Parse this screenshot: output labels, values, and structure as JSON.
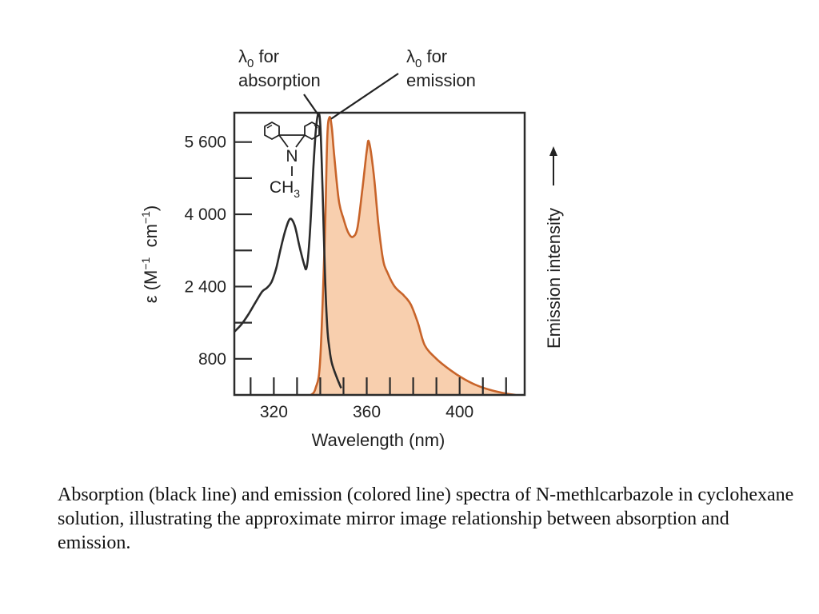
{
  "chart_data": {
    "type": "line",
    "xlabel": "Wavelength (nm)",
    "ylabel": "ε (M",
    "ylabel_sup1": "−1",
    "ylabel_mid": "  cm",
    "ylabel_sup2": "−1",
    "ylabel_end": ")",
    "ylabel_right": "Emission intensity",
    "xlim": [
      303,
      428
    ],
    "ylim": [
      0,
      6250
    ],
    "x_ticks": [
      320,
      360,
      400
    ],
    "x_minor_ticks": [
      310,
      320,
      330,
      340,
      350,
      360,
      370,
      380,
      390,
      400,
      410,
      420
    ],
    "y_ticks": [
      {
        "value": 5600,
        "label": "5 600"
      },
      {
        "value": 4000,
        "label": "4 000"
      },
      {
        "value": 2400,
        "label": "2 400"
      },
      {
        "value": 800,
        "label": "800"
      }
    ],
    "y_minor_ticks": [
      4800,
      3200,
      1600
    ],
    "series": [
      {
        "name": "Absorption (black line)",
        "color": "#2b2b2b",
        "points": [
          [
            303,
            1400
          ],
          [
            306,
            1560
          ],
          [
            309,
            1780
          ],
          [
            312,
            2040
          ],
          [
            315,
            2290
          ],
          [
            317,
            2370
          ],
          [
            319,
            2500
          ],
          [
            321,
            2800
          ],
          [
            323,
            3250
          ],
          [
            325,
            3650
          ],
          [
            327,
            3900
          ],
          [
            329,
            3750
          ],
          [
            331,
            3300
          ],
          [
            333,
            2900
          ],
          [
            334,
            2800
          ],
          [
            335,
            3200
          ],
          [
            336,
            4000
          ],
          [
            337,
            5000
          ],
          [
            338,
            5800
          ],
          [
            339,
            6200
          ],
          [
            340,
            6000
          ],
          [
            341,
            4500
          ],
          [
            342,
            2700
          ],
          [
            343,
            1500
          ],
          [
            344,
            1000
          ],
          [
            345,
            700
          ],
          [
            347,
            400
          ],
          [
            349,
            150
          ]
        ]
      },
      {
        "name": "Emission (colored line)",
        "color": "#c8642a",
        "fill": "#f8cfae",
        "points": [
          [
            336,
            0
          ],
          [
            338,
            150
          ],
          [
            340,
            800
          ],
          [
            342,
            3600
          ],
          [
            343,
            5700
          ],
          [
            344,
            6150
          ],
          [
            345,
            5900
          ],
          [
            346,
            5300
          ],
          [
            348,
            4300
          ],
          [
            350,
            3900
          ],
          [
            352,
            3600
          ],
          [
            354,
            3500
          ],
          [
            356,
            3700
          ],
          [
            358,
            4500
          ],
          [
            360,
            5400
          ],
          [
            361,
            5600
          ],
          [
            363,
            4900
          ],
          [
            365,
            3800
          ],
          [
            367,
            3000
          ],
          [
            369,
            2700
          ],
          [
            372,
            2400
          ],
          [
            376,
            2200
          ],
          [
            379,
            2000
          ],
          [
            382,
            1600
          ],
          [
            385,
            1100
          ],
          [
            390,
            800
          ],
          [
            396,
            550
          ],
          [
            402,
            350
          ],
          [
            408,
            200
          ],
          [
            414,
            100
          ],
          [
            420,
            30
          ],
          [
            424,
            0
          ]
        ]
      }
    ],
    "annotations": [
      {
        "pre": "λ",
        "sub": "0",
        "post": " for",
        "line2": "absorption",
        "target": [
          340,
          6200
        ]
      },
      {
        "pre": "λ",
        "sub": "0",
        "post": " for",
        "line2": "emission",
        "target": [
          344,
          6150
        ]
      }
    ],
    "molecule": {
      "atom": "N",
      "group": "CH",
      "group_sub": "3"
    }
  },
  "caption": "Absorption (black line) and emission (colored line) spectra of N-methlcarbazole in cyclohexane solution, illustrating the approximate mirror image relationship between absorption and emission."
}
